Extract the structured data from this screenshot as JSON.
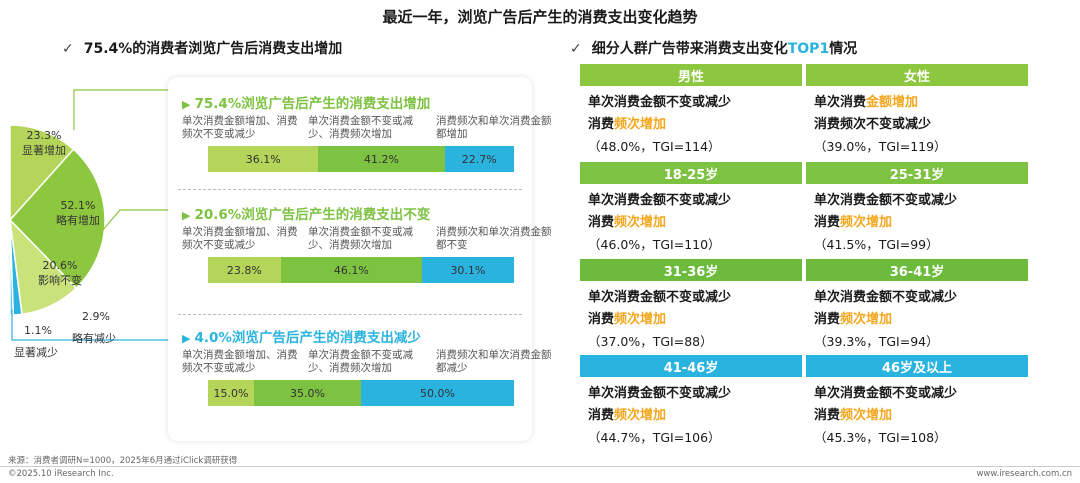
{
  "title": "最近一年，浏览广告后产生的消费支出变化趋势",
  "left_heading": "75.4%的消费者浏览广告后消费支出增加",
  "right_heading": {
    "pre": "细分人群广告带来消费支出变化",
    "accent": "TOP1",
    "post": "情况"
  },
  "colors": {
    "green_dark": "#8dc63f",
    "green_light": "#b5d55a",
    "green_mid": "#7dc241",
    "blue": "#2bb3e0",
    "orange": "#f3a71e"
  },
  "chart_data": [
    {
      "type": "pie",
      "segments": [
        {
          "label": "显著增加",
          "value": 23.3
        },
        {
          "label": "略有增加",
          "value": 52.1
        },
        {
          "label": "影响不变",
          "value": 20.6
        },
        {
          "label": "略有减少",
          "value": 2.9
        },
        {
          "label": "显著减少",
          "value": 1.1
        }
      ]
    },
    {
      "type": "bar",
      "stacked": true,
      "groups": [
        {
          "title": "75.4%浏览广告后产生的消费支出增加",
          "color": "#7dc241",
          "labels": [
            "单次消费金额增加、消费频次不变或减少",
            "单次消费金额不变或减少、消费频次增加",
            "消费频次和单次消费金额都增加"
          ],
          "values": [
            36.1,
            41.2,
            22.7
          ],
          "display": [
            "36.1%",
            "41.2%",
            "22.7%"
          ]
        },
        {
          "title": "20.6%浏览广告后产生的消费支出不变",
          "color": "#7dc241",
          "labels": [
            "单次消费金额增加、消费频次不变或减少",
            "单次消费金额不变或减少、消费频次增加",
            "消费频次和单次消费金额都不变"
          ],
          "values": [
            23.8,
            46.1,
            30.1
          ],
          "display": [
            "23.8%",
            "46.1%",
            "30.1%"
          ]
        },
        {
          "title": "4.0%浏览广告后产生的消费支出减少",
          "color": "#2bb3e0",
          "labels": [
            "单次消费金额增加、消费频次不变或减少",
            "单次消费金额不变或减少、消费频次增加",
            "消费频次和单次消费金额都减少"
          ],
          "values": [
            15.0,
            35.0,
            50.0
          ],
          "display": [
            "15.0%",
            "35.0%",
            "50.0%"
          ]
        }
      ]
    }
  ],
  "pie_labels": [
    {
      "value": "23.3%",
      "name": "显著增加"
    },
    {
      "value": "52.1%",
      "name": "略有增加"
    },
    {
      "value": "20.6%",
      "name": "影响不变"
    },
    {
      "value": "2.9%",
      "name": "略有减少"
    },
    {
      "value": "1.1%",
      "name": "显著减少"
    }
  ],
  "table": [
    {
      "header": "男性",
      "color": "#8dc63f",
      "parts": [
        [
          "b",
          "单次消费金额不变或减少"
        ],
        [
          "br",
          ""
        ],
        [
          "b",
          "消费"
        ],
        [
          "y",
          "频次增加"
        ],
        [
          "br",
          ""
        ],
        [
          "n",
          "（48.0%，TGI=114）"
        ]
      ]
    },
    {
      "header": "女性",
      "color": "#8dc63f",
      "parts": [
        [
          "b",
          "单次消费"
        ],
        [
          "y",
          "金额增加"
        ],
        [
          "br",
          ""
        ],
        [
          "b",
          "消费频次不变或减少"
        ],
        [
          "br",
          ""
        ],
        [
          "n",
          "（39.0%，TGI=119）"
        ]
      ]
    },
    {
      "header": "18-25岁",
      "color": "#7dc241",
      "parts": [
        [
          "b",
          "单次消费金额不变或减少"
        ],
        [
          "br",
          ""
        ],
        [
          "b",
          "消费"
        ],
        [
          "y",
          "频次增加"
        ],
        [
          "br",
          ""
        ],
        [
          "n",
          "（46.0%，TGI=110）"
        ]
      ]
    },
    {
      "header": "25-31岁",
      "color": "#7dc241",
      "parts": [
        [
          "b",
          "单次消费金额不变或减少"
        ],
        [
          "br",
          ""
        ],
        [
          "b",
          "消费"
        ],
        [
          "y",
          "频次增加"
        ],
        [
          "br",
          ""
        ],
        [
          "n",
          "（41.5%，TGI=99）"
        ]
      ]
    },
    {
      "header": "31-36岁",
      "color": "#6cbb3c",
      "parts": [
        [
          "b",
          "单次消费金额不变或减少"
        ],
        [
          "br",
          ""
        ],
        [
          "b",
          "消费"
        ],
        [
          "y",
          "频次增加"
        ],
        [
          "br",
          ""
        ],
        [
          "n",
          "（37.0%，TGI=88）"
        ]
      ]
    },
    {
      "header": "36-41岁",
      "color": "#6cbb3c",
      "parts": [
        [
          "b",
          "单次消费金额不变或减少"
        ],
        [
          "br",
          ""
        ],
        [
          "b",
          "消费"
        ],
        [
          "y",
          "频次增加"
        ],
        [
          "br",
          ""
        ],
        [
          "n",
          "（39.3%，TGI=94）"
        ]
      ]
    },
    {
      "header": "41-46岁",
      "color": "#2bb3e0",
      "parts": [
        [
          "b",
          "单次消费金额不变或减少"
        ],
        [
          "br",
          ""
        ],
        [
          "b",
          "消费"
        ],
        [
          "y",
          "频次增加"
        ],
        [
          "br",
          ""
        ],
        [
          "n",
          "（44.7%，TGI=106）"
        ]
      ]
    },
    {
      "header": "46岁及以上",
      "color": "#2bb3e0",
      "parts": [
        [
          "b",
          "单次消费金额不变或减少"
        ],
        [
          "br",
          ""
        ],
        [
          "b",
          "消费"
        ],
        [
          "y",
          "频次增加"
        ],
        [
          "br",
          ""
        ],
        [
          "n",
          "（45.3%，TGI=108）"
        ]
      ]
    }
  ],
  "footer": {
    "source": "来源：消费者调研N=1000，2025年6月通过iClick调研获得",
    "copyright": "©2025.10 iResearch Inc.",
    "website": "www.iresearch.com.cn"
  }
}
